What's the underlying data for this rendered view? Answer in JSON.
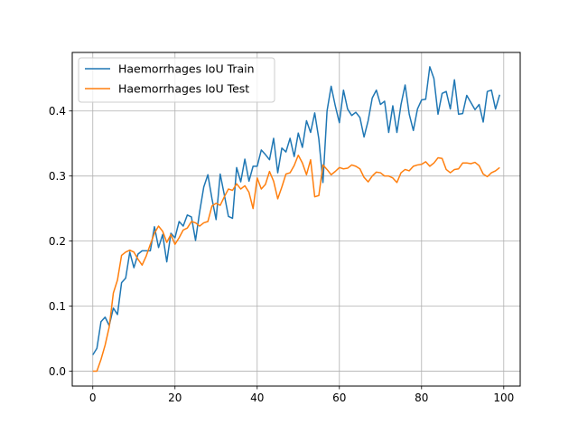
{
  "chart_data": {
    "type": "line",
    "title": "",
    "xlabel": "",
    "ylabel": "",
    "xlim": [
      -5,
      104
    ],
    "ylim": [
      -0.023,
      0.49
    ],
    "xticks": [
      0,
      20,
      40,
      60,
      80,
      100
    ],
    "yticks": [
      0.0,
      0.1,
      0.2,
      0.3,
      0.4
    ],
    "grid": true,
    "legend": "upper-left",
    "series": [
      {
        "name": "Haemorrhages IoU Train",
        "color": "#1f77b4",
        "x": [
          0,
          1,
          2,
          3,
          4,
          5,
          6,
          7,
          8,
          9,
          10,
          11,
          12,
          13,
          14,
          15,
          16,
          17,
          18,
          19,
          20,
          21,
          22,
          23,
          24,
          25,
          26,
          27,
          28,
          29,
          30,
          31,
          32,
          33,
          34,
          35,
          36,
          37,
          38,
          39,
          40,
          41,
          42,
          43,
          44,
          45,
          46,
          47,
          48,
          49,
          50,
          51,
          52,
          53,
          54,
          55,
          56,
          57,
          58,
          59,
          60,
          61,
          62,
          63,
          64,
          65,
          66,
          67,
          68,
          69,
          70,
          71,
          72,
          73,
          74,
          75,
          76,
          77,
          78,
          79,
          80,
          81,
          82,
          83,
          84,
          85,
          86,
          87,
          88,
          89,
          90,
          91,
          92,
          93,
          94,
          95,
          96,
          97,
          98,
          99
        ],
        "values": [
          0.025,
          0.035,
          0.076,
          0.083,
          0.07,
          0.097,
          0.087,
          0.136,
          0.143,
          0.183,
          0.159,
          0.18,
          0.185,
          0.185,
          0.185,
          0.222,
          0.19,
          0.21,
          0.168,
          0.212,
          0.205,
          0.23,
          0.223,
          0.24,
          0.237,
          0.201,
          0.245,
          0.283,
          0.302,
          0.265,
          0.233,
          0.303,
          0.271,
          0.238,
          0.235,
          0.313,
          0.291,
          0.326,
          0.292,
          0.315,
          0.315,
          0.34,
          0.333,
          0.325,
          0.358,
          0.305,
          0.343,
          0.337,
          0.358,
          0.33,
          0.366,
          0.344,
          0.385,
          0.367,
          0.397,
          0.357,
          0.29,
          0.4,
          0.438,
          0.408,
          0.382,
          0.432,
          0.403,
          0.393,
          0.398,
          0.39,
          0.36,
          0.385,
          0.42,
          0.432,
          0.41,
          0.415,
          0.367,
          0.408,
          0.367,
          0.41,
          0.44,
          0.395,
          0.37,
          0.403,
          0.417,
          0.418,
          0.468,
          0.45,
          0.395,
          0.427,
          0.43,
          0.403,
          0.448,
          0.395,
          0.396,
          0.424,
          0.413,
          0.402,
          0.41,
          0.383,
          0.43,
          0.432,
          0.403,
          0.425
        ]
      },
      {
        "name": "Haemorrhages IoU Test",
        "color": "#ff7f0e",
        "x": [
          0,
          1,
          2,
          3,
          4,
          5,
          6,
          7,
          8,
          9,
          10,
          11,
          12,
          13,
          14,
          15,
          16,
          17,
          18,
          19,
          20,
          21,
          22,
          23,
          24,
          25,
          26,
          27,
          28,
          29,
          30,
          31,
          32,
          33,
          34,
          35,
          36,
          37,
          38,
          39,
          40,
          41,
          42,
          43,
          44,
          45,
          46,
          47,
          48,
          49,
          50,
          51,
          52,
          53,
          54,
          55,
          56,
          57,
          58,
          59,
          60,
          61,
          62,
          63,
          64,
          65,
          66,
          67,
          68,
          69,
          70,
          71,
          72,
          73,
          74,
          75,
          76,
          77,
          78,
          79,
          80,
          81,
          82,
          83,
          84,
          85,
          86,
          87,
          88,
          89,
          90,
          91,
          92,
          93,
          94,
          95,
          96,
          97,
          98,
          99
        ],
        "values": [
          0.0,
          0.0,
          0.018,
          0.04,
          0.068,
          0.12,
          0.14,
          0.178,
          0.183,
          0.186,
          0.183,
          0.172,
          0.163,
          0.177,
          0.195,
          0.212,
          0.223,
          0.215,
          0.198,
          0.21,
          0.195,
          0.205,
          0.217,
          0.22,
          0.23,
          0.228,
          0.223,
          0.228,
          0.23,
          0.254,
          0.258,
          0.255,
          0.268,
          0.28,
          0.278,
          0.288,
          0.28,
          0.285,
          0.275,
          0.25,
          0.297,
          0.28,
          0.287,
          0.307,
          0.292,
          0.265,
          0.283,
          0.303,
          0.305,
          0.316,
          0.332,
          0.32,
          0.302,
          0.325,
          0.268,
          0.27,
          0.317,
          0.31,
          0.302,
          0.307,
          0.313,
          0.311,
          0.312,
          0.317,
          0.315,
          0.311,
          0.298,
          0.291,
          0.3,
          0.306,
          0.305,
          0.3,
          0.3,
          0.297,
          0.29,
          0.305,
          0.31,
          0.308,
          0.315,
          0.317,
          0.318,
          0.322,
          0.315,
          0.32,
          0.328,
          0.327,
          0.31,
          0.305,
          0.31,
          0.311,
          0.32,
          0.32,
          0.319,
          0.321,
          0.316,
          0.303,
          0.299,
          0.305,
          0.308,
          0.313
        ]
      }
    ]
  }
}
